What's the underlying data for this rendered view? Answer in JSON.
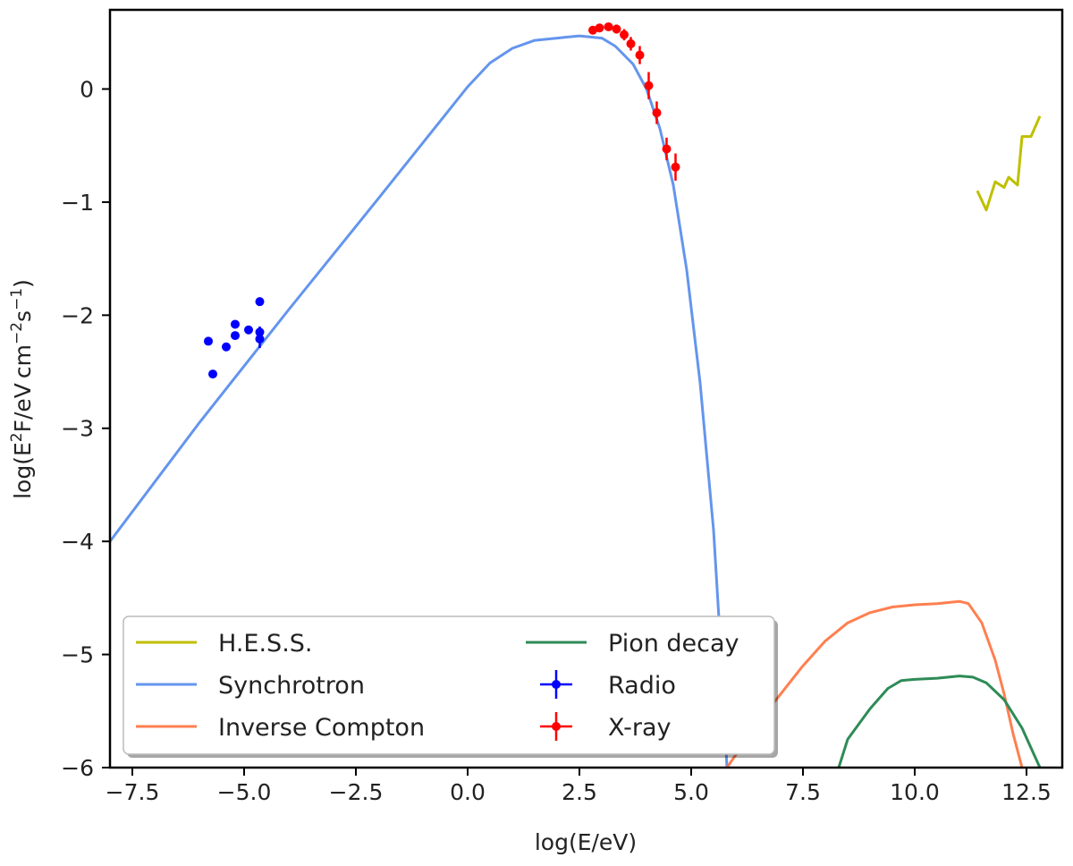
{
  "chart_data": {
    "type": "line",
    "title": "",
    "xlabel": "log(E/eV)",
    "ylabel_parts": [
      "log(E",
      "2",
      "F/eV cm",
      "−2",
      "s",
      "−1",
      ")"
    ],
    "xlim": [
      -8.0,
      13.3
    ],
    "ylim": [
      -6.0,
      0.7
    ],
    "xticks": [
      -7.5,
      -5.0,
      -2.5,
      0.0,
      2.5,
      5.0,
      7.5,
      10.0,
      12.5
    ],
    "xtick_labels": [
      "−7.5",
      "−5.0",
      "−2.5",
      "0.0",
      "2.5",
      "5.0",
      "7.5",
      "10.0",
      "12.5"
    ],
    "yticks": [
      0,
      -1,
      -2,
      -3,
      -4,
      -5,
      -6
    ],
    "ytick_labels": [
      "0",
      "−1",
      "−2",
      "−3",
      "−4",
      "−5",
      "−6"
    ],
    "grid": false,
    "legend_placement": "lower-left",
    "legend_columns": 2,
    "series": [
      {
        "name": "H.E.S.S.",
        "kind": "line",
        "color": "#bfbf00",
        "x": [
          11.4,
          11.6,
          11.8,
          12.0,
          12.1,
          12.3,
          12.4,
          12.6,
          12.8
        ],
        "y": [
          -0.9,
          -1.07,
          -0.82,
          -0.87,
          -0.78,
          -0.85,
          -0.42,
          -0.42,
          -0.24
        ]
      },
      {
        "name": "Synchrotron",
        "kind": "line",
        "color": "#6495ed",
        "x": [
          -8.0,
          -6.0,
          -4.0,
          -2.0,
          0.0,
          0.5,
          1.0,
          1.5,
          2.0,
          2.5,
          3.0,
          3.3,
          3.7,
          4.0,
          4.3,
          4.6,
          4.9,
          5.2,
          5.5,
          5.7,
          5.8
        ],
        "y": [
          -4.0,
          -2.95,
          -1.95,
          -0.97,
          0.02,
          0.23,
          0.36,
          0.43,
          0.45,
          0.47,
          0.45,
          0.38,
          0.22,
          0.0,
          -0.35,
          -0.85,
          -1.6,
          -2.6,
          -3.9,
          -5.2,
          -6.0
        ]
      },
      {
        "name": "Inverse Compton",
        "kind": "line",
        "color": "#ff7f50",
        "x": [
          5.8,
          6.5,
          7.0,
          7.5,
          8.0,
          8.5,
          9.0,
          9.5,
          10.0,
          10.5,
          11.0,
          11.2,
          11.5,
          11.8,
          12.0,
          12.2,
          12.4
        ],
        "y": [
          -6.0,
          -5.6,
          -5.35,
          -5.1,
          -4.88,
          -4.72,
          -4.63,
          -4.58,
          -4.56,
          -4.55,
          -4.53,
          -4.55,
          -4.72,
          -5.05,
          -5.35,
          -5.7,
          -6.0
        ]
      },
      {
        "name": "Pion decay",
        "kind": "line",
        "color": "#2e8b57",
        "x": [
          8.3,
          8.5,
          9.0,
          9.4,
          9.7,
          10.0,
          10.5,
          11.0,
          11.3,
          11.6,
          12.0,
          12.4,
          12.8
        ],
        "y": [
          -6.0,
          -5.75,
          -5.48,
          -5.3,
          -5.23,
          -5.22,
          -5.21,
          -5.19,
          -5.2,
          -5.25,
          -5.4,
          -5.65,
          -6.0
        ]
      },
      {
        "name": "Radio",
        "kind": "errorbar",
        "color": "#0000ff",
        "x": [
          -5.8,
          -5.7,
          -5.4,
          -5.2,
          -5.2,
          -4.9,
          -4.65,
          -4.65,
          -4.65
        ],
        "y": [
          -2.23,
          -2.52,
          -2.28,
          -2.08,
          -2.18,
          -2.13,
          -1.88,
          -2.15,
          -2.21
        ],
        "yerr": [
          0,
          0,
          0,
          0,
          0,
          0,
          0,
          0.05,
          0.08
        ]
      },
      {
        "name": "X-ray",
        "kind": "errorbar",
        "color": "#ff0000",
        "x": [
          2.8,
          2.95,
          3.15,
          3.33,
          3.5,
          3.65,
          3.85,
          4.05,
          4.23,
          4.45,
          4.65
        ],
        "y": [
          0.52,
          0.54,
          0.55,
          0.53,
          0.48,
          0.4,
          0.3,
          0.03,
          -0.21,
          -0.53,
          -0.69
        ],
        "yerr": [
          0.02,
          0.02,
          0.03,
          0.04,
          0.05,
          0.06,
          0.08,
          0.12,
          0.1,
          0.1,
          0.12
        ]
      }
    ]
  }
}
